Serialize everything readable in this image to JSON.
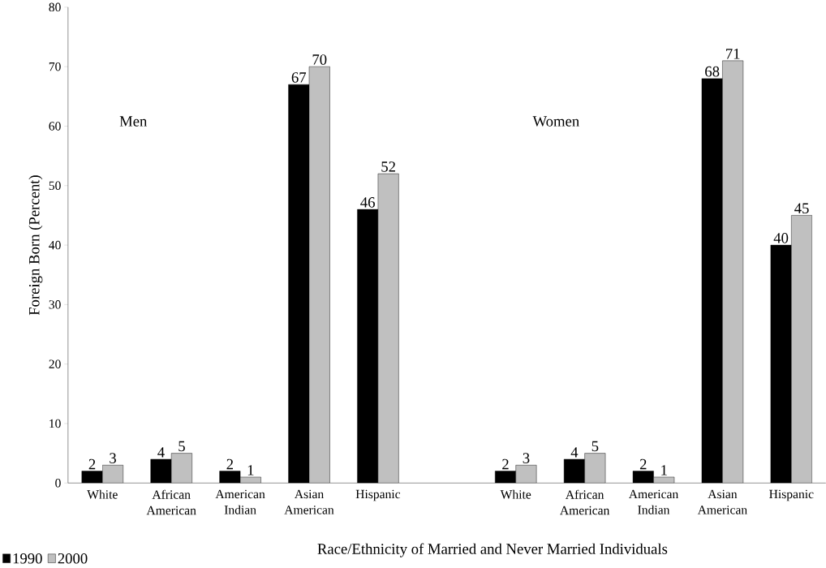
{
  "chart_data": {
    "type": "bar",
    "xlabel": "Race/Ethnicity of Married and Never Married Individuals",
    "ylabel": "Foreign Born (Percent)",
    "categories": [
      "White",
      "African American",
      "American Indian",
      "Asian American",
      "Hispanic",
      null,
      "White",
      "African American",
      "American Indian",
      "Asian American",
      "Hispanic"
    ],
    "series": [
      {
        "name": "1990",
        "color": "#000000",
        "values": [
          2,
          4,
          2,
          67,
          46,
          null,
          2,
          4,
          2,
          68,
          40
        ]
      },
      {
        "name": "2000",
        "color": "#c0c0c0",
        "values": [
          3,
          5,
          1,
          70,
          52,
          null,
          3,
          5,
          1,
          71,
          45
        ]
      }
    ],
    "ylim": [
      0,
      80
    ],
    "yticks": [
      0,
      10,
      20,
      30,
      40,
      50,
      60,
      70,
      80
    ],
    "grid": false,
    "legend": "bottom left",
    "data_labels": true,
    "annotations": [
      "Men",
      "Women"
    ]
  }
}
